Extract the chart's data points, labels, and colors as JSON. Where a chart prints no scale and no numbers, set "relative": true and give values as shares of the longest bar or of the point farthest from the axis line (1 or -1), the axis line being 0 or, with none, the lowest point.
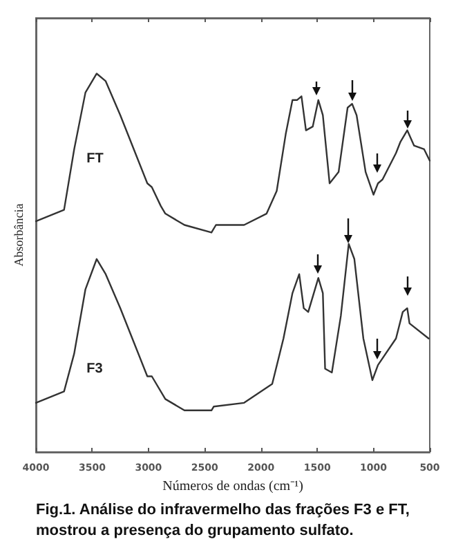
{
  "chart_data": {
    "type": "line",
    "relative": true,
    "xlabel": "Números de ondas (cm⁻¹)",
    "ylabel": "Absorbância",
    "xlim": [
      4000,
      500
    ],
    "xticks": [
      4000,
      3500,
      3000,
      2500,
      2000,
      1500,
      1000,
      500
    ],
    "legend": false,
    "grid": false,
    "marker": "none",
    "line_style": "solid",
    "annotations": [
      "Fig.1.  Análise do infravermelho das frações F3 e FT, mostrou a presença do grupamento sulfato."
    ],
    "series": [
      {
        "name": "FT",
        "color": "#333333",
        "x": [
          4000,
          3750,
          3660,
          3560,
          3460,
          3380,
          3250,
          3130,
          3010,
          2970,
          2890,
          2850,
          2680,
          2440,
          2400,
          2150,
          1950,
          1860,
          1780,
          1720,
          1680,
          1640,
          1600,
          1540,
          1490,
          1450,
          1390,
          1310,
          1230,
          1190,
          1150,
          1070,
          1000,
          960,
          920,
          800,
          760,
          700,
          640,
          550,
          500
        ],
        "values": [
          0.61,
          0.64,
          0.8,
          0.95,
          1.0,
          0.98,
          0.89,
          0.8,
          0.71,
          0.7,
          0.65,
          0.63,
          0.6,
          0.58,
          0.6,
          0.6,
          0.63,
          0.69,
          0.84,
          0.93,
          0.93,
          0.94,
          0.85,
          0.86,
          0.93,
          0.89,
          0.71,
          0.74,
          0.91,
          0.92,
          0.89,
          0.74,
          0.68,
          0.71,
          0.72,
          0.79,
          0.82,
          0.85,
          0.81,
          0.8,
          0.77
        ]
      },
      {
        "name": "F3",
        "color": "#333333",
        "x": [
          4000,
          3750,
          3660,
          3560,
          3460,
          3380,
          3250,
          3130,
          3010,
          2970,
          2850,
          2680,
          2440,
          2420,
          2150,
          1900,
          1800,
          1720,
          1660,
          1620,
          1580,
          1490,
          1450,
          1430,
          1370,
          1290,
          1220,
          1170,
          1090,
          1010,
          960,
          800,
          740,
          700,
          680,
          510
        ],
        "values": [
          0.13,
          0.16,
          0.26,
          0.43,
          0.51,
          0.47,
          0.38,
          0.29,
          0.2,
          0.2,
          0.14,
          0.11,
          0.11,
          0.12,
          0.13,
          0.18,
          0.3,
          0.42,
          0.47,
          0.38,
          0.37,
          0.46,
          0.42,
          0.22,
          0.21,
          0.36,
          0.55,
          0.51,
          0.3,
          0.19,
          0.23,
          0.3,
          0.37,
          0.38,
          0.34,
          0.3
        ]
      }
    ]
  }
}
